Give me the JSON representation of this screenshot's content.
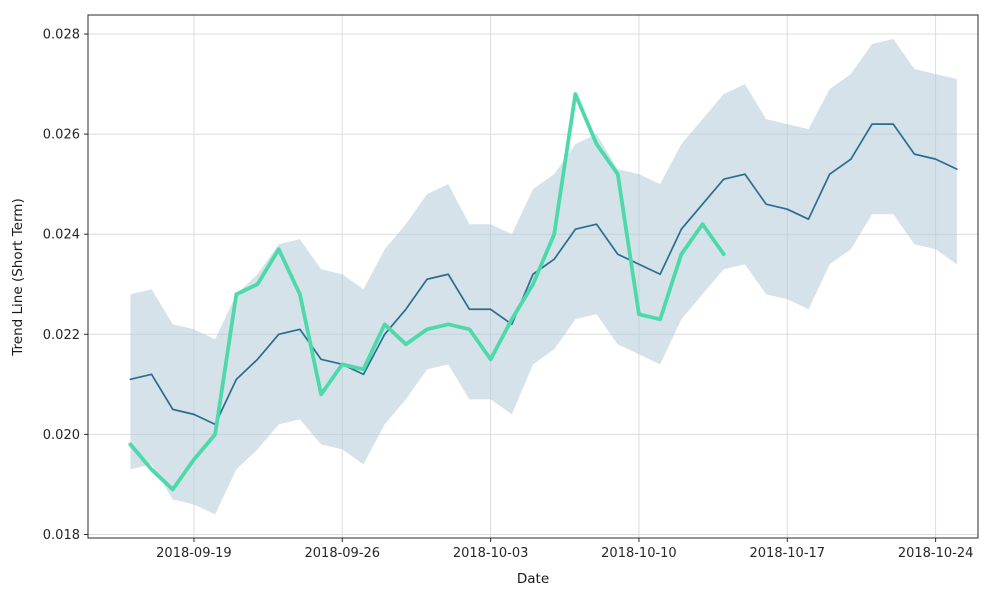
{
  "figure": {
    "background": "#ffffff"
  },
  "chart_data": {
    "type": "line",
    "title": "",
    "xlabel": "Date",
    "ylabel": "Trend Line (Short Term)",
    "grid": true,
    "grid_color": "#dcdcdc",
    "frame_color": "#2b2b2b",
    "legend": "none",
    "xlim": [
      "2018-09-14T00:00:00Z",
      "2018-10-26T00:00:00Z"
    ],
    "ylim": [
      0.01793,
      0.02838
    ],
    "yticks": [
      0.018,
      0.02,
      0.022,
      0.024,
      0.026,
      0.028
    ],
    "ytick_format_decimals": 3,
    "xticks": [
      "2018-09-19",
      "2018-09-26",
      "2018-10-03",
      "2018-10-10",
      "2018-10-17",
      "2018-10-24"
    ],
    "band": {
      "name": "confidence-band",
      "color": "#b3cbd9",
      "opacity": 0.55,
      "dates": [
        "2018-09-16",
        "2018-09-17",
        "2018-09-18",
        "2018-09-19",
        "2018-09-20",
        "2018-09-21",
        "2018-09-22",
        "2018-09-23",
        "2018-09-24",
        "2018-09-25",
        "2018-09-26",
        "2018-09-27",
        "2018-09-28",
        "2018-09-29",
        "2018-09-30",
        "2018-10-01",
        "2018-10-02",
        "2018-10-03",
        "2018-10-04",
        "2018-10-05",
        "2018-10-06",
        "2018-10-07",
        "2018-10-08",
        "2018-10-09",
        "2018-10-10",
        "2018-10-11",
        "2018-10-12",
        "2018-10-13",
        "2018-10-14",
        "2018-10-15",
        "2018-10-16",
        "2018-10-17",
        "2018-10-18",
        "2018-10-19",
        "2018-10-20",
        "2018-10-21",
        "2018-10-22",
        "2018-10-23",
        "2018-10-24",
        "2018-10-25"
      ],
      "upper": [
        0.0228,
        0.0229,
        0.0222,
        0.0221,
        0.0219,
        0.0228,
        0.0232,
        0.0238,
        0.0239,
        0.0233,
        0.0232,
        0.0229,
        0.0237,
        0.0242,
        0.0248,
        0.025,
        0.0242,
        0.0242,
        0.024,
        0.0249,
        0.0252,
        0.0258,
        0.026,
        0.0253,
        0.0252,
        0.025,
        0.0258,
        0.0263,
        0.0268,
        0.027,
        0.0263,
        0.0262,
        0.0261,
        0.0269,
        0.0272,
        0.0278,
        0.0279,
        0.0273,
        0.0272,
        0.0271
      ],
      "lower": [
        0.0193,
        0.0194,
        0.0187,
        0.0186,
        0.0184,
        0.0193,
        0.0197,
        0.0202,
        0.0203,
        0.0198,
        0.0197,
        0.0194,
        0.0202,
        0.0207,
        0.0213,
        0.0214,
        0.0207,
        0.0207,
        0.0204,
        0.0214,
        0.0217,
        0.0223,
        0.0224,
        0.0218,
        0.0216,
        0.0214,
        0.0223,
        0.0228,
        0.0233,
        0.0234,
        0.0228,
        0.0227,
        0.0225,
        0.0234,
        0.0237,
        0.0244,
        0.0244,
        0.0238,
        0.0237,
        0.0234
      ]
    },
    "series": [
      {
        "name": "trend-line-series",
        "color": "#2a6e8f",
        "width": 1.7,
        "dates": [
          "2018-09-16",
          "2018-09-17",
          "2018-09-18",
          "2018-09-19",
          "2018-09-20",
          "2018-09-21",
          "2018-09-22",
          "2018-09-23",
          "2018-09-24",
          "2018-09-25",
          "2018-09-26",
          "2018-09-27",
          "2018-09-28",
          "2018-09-29",
          "2018-09-30",
          "2018-10-01",
          "2018-10-02",
          "2018-10-03",
          "2018-10-04",
          "2018-10-05",
          "2018-10-06",
          "2018-10-07",
          "2018-10-08",
          "2018-10-09",
          "2018-10-10",
          "2018-10-11",
          "2018-10-12",
          "2018-10-13",
          "2018-10-14",
          "2018-10-15",
          "2018-10-16",
          "2018-10-17",
          "2018-10-18",
          "2018-10-19",
          "2018-10-20",
          "2018-10-21",
          "2018-10-22",
          "2018-10-23",
          "2018-10-24",
          "2018-10-25"
        ],
        "values": [
          0.0211,
          0.0212,
          0.0205,
          0.0204,
          0.0202,
          0.0211,
          0.0215,
          0.022,
          0.0221,
          0.0215,
          0.0214,
          0.0212,
          0.022,
          0.0225,
          0.0231,
          0.0232,
          0.0225,
          0.0225,
          0.0222,
          0.0232,
          0.0235,
          0.0241,
          0.0242,
          0.0236,
          0.0234,
          0.0232,
          0.0241,
          0.0246,
          0.0251,
          0.0252,
          0.0246,
          0.0245,
          0.0243,
          0.0252,
          0.0255,
          0.0262,
          0.0262,
          0.0256,
          0.0255,
          0.0253
        ]
      },
      {
        "name": "short-term-actual-series",
        "color": "#4ed9ab",
        "width": 3.8,
        "dates": [
          "2018-09-16",
          "2018-09-17",
          "2018-09-18",
          "2018-09-19",
          "2018-09-20",
          "2018-09-21",
          "2018-09-22",
          "2018-09-23",
          "2018-09-24",
          "2018-09-25",
          "2018-09-26",
          "2018-09-27",
          "2018-09-28",
          "2018-09-29",
          "2018-09-30",
          "2018-10-01",
          "2018-10-02",
          "2018-10-03",
          "2018-10-04",
          "2018-10-05",
          "2018-10-06",
          "2018-10-07",
          "2018-10-08",
          "2018-10-09",
          "2018-10-10",
          "2018-10-11",
          "2018-10-12",
          "2018-10-13",
          "2018-10-14"
        ],
        "values": [
          0.0198,
          0.0193,
          0.0189,
          0.0195,
          0.02,
          0.0228,
          0.023,
          0.0237,
          0.0228,
          0.0208,
          0.0214,
          0.0213,
          0.0222,
          0.0218,
          0.0221,
          0.0222,
          0.0221,
          0.0215,
          0.0223,
          0.023,
          0.024,
          0.0268,
          0.0258,
          0.0252,
          0.0224,
          0.0223,
          0.0236,
          0.0242,
          0.0236
        ]
      }
    ]
  }
}
